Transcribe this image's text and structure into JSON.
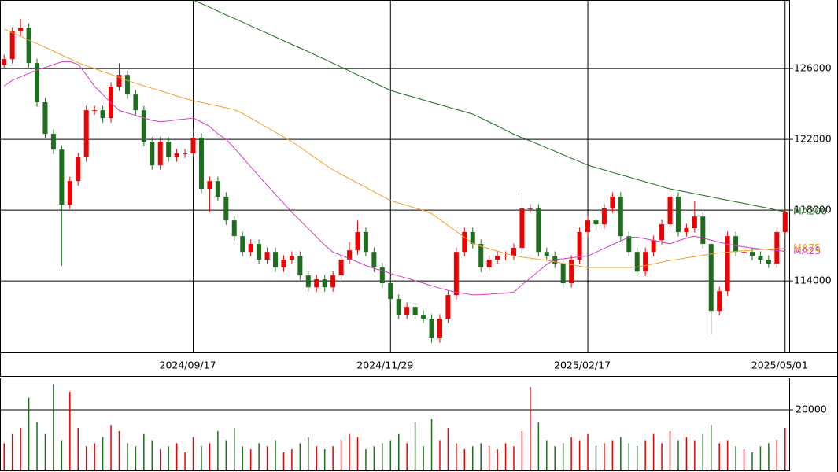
{
  "chart_data": {
    "type": "candlestick",
    "categories": [
      null,
      null,
      null,
      null,
      null,
      null,
      null,
      null,
      null,
      null,
      null,
      null,
      null,
      null,
      null,
      null,
      null,
      null,
      null,
      null,
      null,
      null,
      null,
      "2024/09/17",
      null,
      null,
      null,
      null,
      null,
      null,
      null,
      null,
      null,
      null,
      null,
      null,
      null,
      null,
      null,
      null,
      null,
      null,
      null,
      null,
      null,
      null,
      null,
      "2024/11/29",
      null,
      null,
      null,
      null,
      null,
      null,
      null,
      null,
      null,
      null,
      null,
      null,
      null,
      null,
      null,
      null,
      null,
      null,
      null,
      null,
      null,
      null,
      null,
      "2025/02/17",
      null,
      null,
      null,
      null,
      null,
      null,
      null,
      null,
      null,
      null,
      null,
      null,
      null,
      null,
      null,
      null,
      null,
      null,
      null,
      null,
      null,
      null,
      null,
      "2025/05/01"
    ],
    "open": [
      126200,
      126530,
      128090,
      128310,
      126310,
      124090,
      122310,
      121420,
      118310,
      119640,
      120980,
      123640,
      123640,
      123200,
      124980,
      125640,
      124530,
      123640,
      121870,
      120530,
      121870,
      120980,
      121200,
      121200,
      122090,
      119200,
      119640,
      118760,
      117420,
      116530,
      115640,
      116090,
      115200,
      115640,
      114760,
      115200,
      115420,
      114310,
      113640,
      114090,
      113640,
      114310,
      115200,
      115730,
      116760,
      115640,
      114760,
      113870,
      112980,
      112090,
      112530,
      112090,
      111870,
      110760,
      111870,
      113200,
      115640,
      116760,
      116090,
      114760,
      115200,
      115420,
      115420,
      115870,
      118090,
      118090,
      115640,
      115420,
      114980,
      113870,
      115200,
      116760,
      117420,
      117200,
      118090,
      118760,
      116530,
      115640,
      114530,
      115640,
      116310,
      117200,
      118760,
      116760,
      116980,
      117640,
      116090,
      112310,
      113420,
      116530,
      115640,
      115640,
      115420,
      115200,
      114980,
      116760
    ],
    "high": [
      126780,
      128340,
      128800,
      128560,
      126560,
      124340,
      122560,
      121670,
      119890,
      121230,
      123890,
      123890,
      123890,
      125230,
      126300,
      125890,
      124780,
      123890,
      122120,
      122120,
      122120,
      121450,
      121450,
      122600,
      122340,
      119890,
      119890,
      119010,
      117670,
      116780,
      116340,
      116340,
      115890,
      115890,
      115450,
      115670,
      115670,
      114560,
      114340,
      114340,
      114560,
      115450,
      116200,
      117400,
      117010,
      115890,
      115010,
      114120,
      113230,
      112780,
      112780,
      112340,
      112120,
      112120,
      113450,
      115890,
      117010,
      117010,
      116340,
      115450,
      115670,
      115670,
      116120,
      119000,
      118340,
      118340,
      115890,
      115670,
      115230,
      115450,
      117010,
      117670,
      117670,
      118340,
      119010,
      119010,
      116780,
      115890,
      115890,
      116560,
      117450,
      119200,
      119010,
      117230,
      118500,
      117890,
      116340,
      113670,
      116780,
      116780,
      115890,
      115890,
      115670,
      115450,
      117010,
      118120
    ],
    "low": [
      125950,
      126280,
      127840,
      126060,
      123840,
      122060,
      121170,
      114840,
      118060,
      119390,
      120730,
      123390,
      122950,
      122950,
      124730,
      124280,
      123390,
      121620,
      120280,
      120280,
      120730,
      120730,
      120950,
      120950,
      118950,
      117900,
      118510,
      117170,
      116280,
      115390,
      115390,
      114950,
      114950,
      114510,
      114510,
      114950,
      114060,
      113390,
      113390,
      113390,
      113390,
      114060,
      114950,
      115480,
      115390,
      114510,
      113620,
      112730,
      111840,
      111840,
      111840,
      111620,
      110510,
      110510,
      111620,
      112950,
      115390,
      115840,
      114510,
      114510,
      114950,
      115170,
      115170,
      115620,
      117840,
      115390,
      115170,
      114730,
      113620,
      113620,
      114950,
      116510,
      116950,
      116950,
      117840,
      116280,
      115390,
      114280,
      114280,
      115390,
      116060,
      116950,
      116510,
      116510,
      116730,
      115840,
      111000,
      112060,
      113170,
      115390,
      115390,
      115170,
      114950,
      114730,
      114730,
      116510
    ],
    "close": [
      126530,
      128090,
      128310,
      126310,
      124090,
      122310,
      121420,
      118310,
      119640,
      120980,
      123640,
      123640,
      123200,
      124980,
      125640,
      124530,
      123640,
      121870,
      120530,
      121870,
      120980,
      121200,
      121200,
      122090,
      119200,
      119640,
      118760,
      117420,
      116530,
      115640,
      116090,
      115200,
      115640,
      114760,
      115200,
      115420,
      114310,
      113640,
      114090,
      113640,
      114310,
      115200,
      115730,
      116760,
      115640,
      114760,
      113870,
      112980,
      112090,
      112530,
      112090,
      111870,
      110760,
      111870,
      113200,
      115640,
      116760,
      116090,
      114760,
      115200,
      115420,
      115420,
      115870,
      118090,
      118090,
      115640,
      115420,
      114980,
      113870,
      115200,
      116760,
      117420,
      117200,
      118090,
      118760,
      116530,
      115640,
      114530,
      115640,
      116310,
      117200,
      118760,
      116760,
      116980,
      117640,
      116090,
      112310,
      113420,
      116530,
      115640,
      115640,
      115420,
      115200,
      114980,
      116760,
      117870
    ],
    "up_color": "#ee0000",
    "down_color": "#1f6e1f",
    "ylim": [
      109960,
      129870
    ],
    "yticks": [
      114000,
      118000,
      122000,
      126000
    ],
    "grid": true,
    "series": [
      {
        "name": "MA25",
        "color": "#d43fc4",
        "values": [
          125020,
          125330,
          125530,
          125730,
          125910,
          126060,
          126220,
          126380,
          126390,
          126230,
          125640,
          124990,
          124530,
          124060,
          123630,
          123490,
          123350,
          123210,
          123070,
          122990,
          123040,
          123100,
          123150,
          123200,
          122980,
          122730,
          122310,
          122000,
          121510,
          120980,
          120440,
          119910,
          119400,
          118890,
          118390,
          117880,
          117420,
          116950,
          116490,
          116020,
          115630,
          115450,
          115260,
          115070,
          114870,
          114710,
          114580,
          114420,
          114280,
          114150,
          114010,
          113870,
          113730,
          113590,
          113460,
          113360,
          113290,
          113210,
          113220,
          113250,
          113280,
          113310,
          113370,
          113770,
          114160,
          114540,
          114930,
          115210,
          115250,
          115310,
          115360,
          115410,
          115620,
          115840,
          116050,
          116260,
          116470,
          116470,
          116380,
          116290,
          116190,
          116100,
          116270,
          116420,
          116530,
          116420,
          116310,
          116180,
          116080,
          116000,
          115930,
          115860,
          115810,
          115770,
          115720,
          115670
        ]
      },
      {
        "name": "MA75",
        "color": "#f0a030",
        "values": [
          128220,
          128020,
          127820,
          127600,
          127400,
          127200,
          126980,
          126760,
          126550,
          126330,
          126150,
          126000,
          125830,
          125670,
          125500,
          125330,
          125170,
          125020,
          124880,
          124740,
          124600,
          124450,
          124310,
          124180,
          124080,
          123980,
          123880,
          123780,
          123680,
          123460,
          123200,
          122930,
          122670,
          122400,
          122130,
          121870,
          121560,
          121230,
          120900,
          120580,
          120270,
          120020,
          119780,
          119530,
          119290,
          119030,
          118790,
          118540,
          118400,
          118260,
          118120,
          117980,
          117800,
          117470,
          117130,
          116800,
          116460,
          116120,
          115960,
          115820,
          115690,
          115550,
          115420,
          115350,
          115290,
          115220,
          115160,
          115080,
          115000,
          114920,
          114840,
          114760,
          114760,
          114760,
          114760,
          114760,
          114760,
          114780,
          114870,
          114960,
          115060,
          115160,
          115220,
          115300,
          115370,
          115450,
          115520,
          115580,
          115620,
          115670,
          115710,
          115740,
          115770,
          115800,
          115820,
          115850
        ]
      },
      {
        "name": "MA200",
        "color": "#1d6b1d",
        "values": [
          null,
          null,
          null,
          null,
          null,
          null,
          null,
          null,
          null,
          null,
          null,
          null,
          null,
          null,
          null,
          null,
          null,
          null,
          null,
          null,
          null,
          null,
          null,
          129870,
          129670,
          129460,
          129240,
          129030,
          128830,
          128620,
          128410,
          128200,
          127990,
          127780,
          127570,
          127360,
          127160,
          126950,
          126730,
          126520,
          126300,
          126080,
          125860,
          125640,
          125420,
          125200,
          124980,
          124760,
          124620,
          124490,
          124360,
          124220,
          124090,
          123960,
          123820,
          123690,
          123560,
          123420,
          123210,
          122980,
          122760,
          122520,
          122290,
          122090,
          121910,
          121720,
          121520,
          121330,
          121130,
          120930,
          120740,
          120540,
          120400,
          120270,
          120130,
          120000,
          119870,
          119730,
          119600,
          119470,
          119330,
          119200,
          119110,
          119020,
          118930,
          118840,
          118750,
          118650,
          118560,
          118470,
          118380,
          118280,
          118190,
          118100,
          118000,
          117910
        ]
      }
    ],
    "volume": {
      "values": [
        9000,
        12000,
        14000,
        24000,
        16000,
        12000,
        28500,
        10000,
        26000,
        14000,
        8000,
        9000,
        11000,
        15000,
        13000,
        9000,
        8000,
        12000,
        10000,
        7000,
        8000,
        9000,
        6000,
        11000,
        8000,
        9000,
        13000,
        10000,
        14000,
        8000,
        7000,
        9000,
        8000,
        10000,
        6000,
        7000,
        9000,
        11000,
        8000,
        7000,
        8000,
        10000,
        12000,
        11000,
        7000,
        8000,
        9000,
        10000,
        12000,
        9000,
        16000,
        8000,
        17000,
        10000,
        14000,
        9000,
        7000,
        8000,
        9000,
        8000,
        7000,
        9000,
        8000,
        13000,
        27500,
        16000,
        10000,
        8000,
        9000,
        11000,
        10000,
        12000,
        8000,
        9000,
        10000,
        11000,
        9000,
        8000,
        10000,
        12000,
        9000,
        13000,
        10000,
        11000,
        10000,
        12000,
        15000,
        9000,
        10000,
        8000,
        7000,
        6000,
        8000,
        9000,
        10000,
        14000
      ],
      "ylim": [
        0,
        30650
      ],
      "yticks": [
        20000
      ]
    }
  }
}
